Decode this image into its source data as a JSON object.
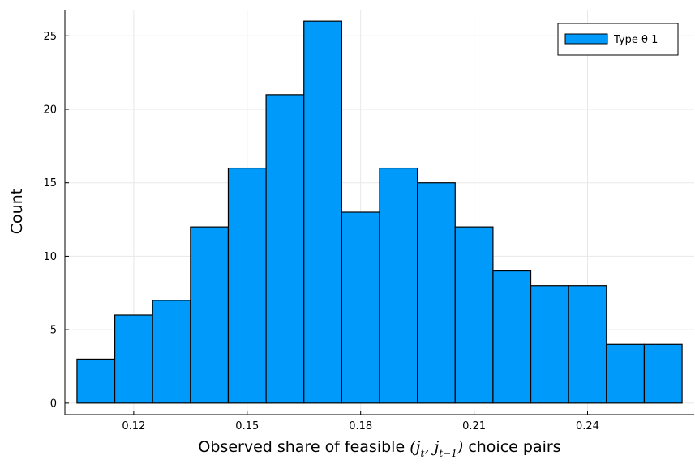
{
  "chart_data": {
    "type": "bar",
    "subtype": "histogram",
    "bin_edges": [
      0.105,
      0.115,
      0.125,
      0.135,
      0.145,
      0.155,
      0.165,
      0.175,
      0.185,
      0.195,
      0.205,
      0.215,
      0.225,
      0.235,
      0.245,
      0.255,
      0.265
    ],
    "series": [
      {
        "name": "Type θ 1",
        "color": "#009AFA",
        "values": [
          3,
          6,
          7,
          12,
          16,
          21,
          26,
          13,
          16,
          15,
          12,
          9,
          8,
          8,
          4,
          4
        ]
      }
    ],
    "xlabel_prefix": "Observed share of feasible ",
    "xlabel_suffix": " choice pairs",
    "xlabel_math": {
      "open": "(",
      "v1": "j",
      "s1": "t",
      "comma": ", ",
      "v2": "j",
      "s2": "t−1",
      "close": ")"
    },
    "ylabel": "Count",
    "xlim": [
      0.1018,
      0.2682
    ],
    "ylim": [
      -0.78,
      26.78
    ],
    "x_ticks": [
      0.12,
      0.15,
      0.18,
      0.21,
      0.24
    ],
    "x_tick_labels": [
      "0.12",
      "0.15",
      "0.18",
      "0.21",
      "0.24"
    ],
    "y_ticks": [
      0,
      5,
      10,
      15,
      20,
      25
    ],
    "y_tick_labels": [
      "0",
      "5",
      "10",
      "15",
      "20",
      "25"
    ],
    "grid": true,
    "legend_position": "top-right",
    "colors": {
      "bar_fill": "#009AFA",
      "bar_stroke": "#000000",
      "grid": "#e8e8e8",
      "axis": "#000000"
    }
  }
}
